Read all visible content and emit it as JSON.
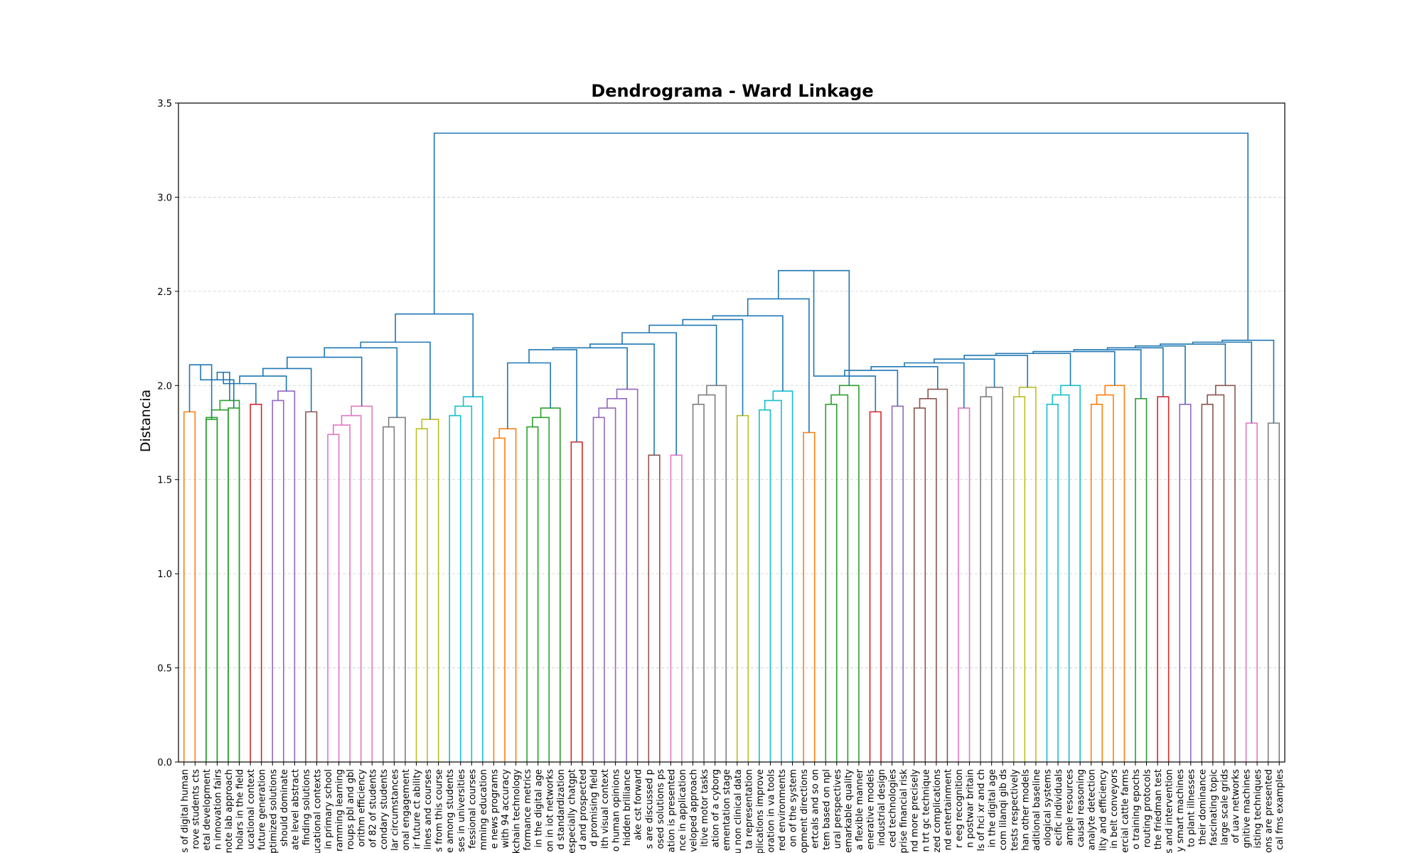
{
  "chart_data": {
    "type": "dendrogram",
    "title": "Dendrograma - Ward Linkage",
    "xlabel": "",
    "ylabel": "Distancia",
    "ylim": [
      0,
      3.5
    ],
    "yticks": [
      0.0,
      0.5,
      1.0,
      1.5,
      2.0,
      2.5,
      3.0,
      3.5
    ],
    "grid": "horizontal dashed",
    "colors": {
      "orange": "#ff7f0e",
      "green": "#2ca02c",
      "red": "#d62728",
      "purple": "#9467bd",
      "brown": "#8c564b",
      "pink": "#e377c2",
      "gray": "#7f7f7f",
      "olive": "#bcbd22",
      "cyan": "#17becf",
      "blue": "#1f77b4"
    },
    "leaves": [
      "s of digital human",
      "rove students cts",
      "etal development",
      "n innovation fairs",
      "note lab approach",
      "holars in the field",
      "ucational context",
      "future generation",
      "optimized solutions",
      "should dominate",
      "ate level abstract",
      "finding solutions",
      "ucational contexts",
      "in primary school",
      "ramming learning",
      "roups pbl and gbl",
      "orithm efficiency",
      "of 82 of students",
      "condary students",
      "lar circumstances",
      "onal engagement",
      "ir future ct ability",
      "lines and courses",
      "s from this course",
      "e among students",
      "ses in universities",
      "fessional courses",
      "mming education",
      "e news programs",
      "with 94 accuracy",
      "kchain technology",
      "formance metrics",
      "in the digital age",
      "on in iot networks",
      "d standardization",
      "especially chatgpt",
      "d and prospected",
      "d promising field",
      "ith visual context",
      "o human opinions",
      "hidden brilliance",
      "ake cst forward",
      "s are discussed p",
      "osed solutions ps",
      "ation is presented",
      "nce in application",
      "veloped approach",
      "itive motor tasks",
      "ation of a cyborg",
      "ementation stage",
      "u non clinical data",
      "ta representation",
      "plications improve",
      "oration in va tools",
      "red environments",
      "on of the system",
      "opment directions",
      "ertcals and so on",
      "tem based on npl",
      "ural perspectives",
      "emarkable quality",
      "a flexible manner",
      "enerative models",
      "industrial design",
      "ced technologies",
      "prise financial risk",
      "nd more precisely",
      "n trt gc technique",
      "zed complications",
      "nd entertainment",
      "r eeg recognition",
      "n postwar britain",
      "ls of hci xr and ch",
      "in the digital age",
      "com lilanqi gib ds",
      "tests respectively",
      "han other models",
      "aditional baseline",
      "ological systems",
      "ecific individuals",
      "ample resources",
      "causal reasoning",
      "analyte detection",
      "lity and efficiency",
      "in belt conveyors",
      "ercial cattle farms",
      "o training epochs",
      "routing protocols",
      "the friedman test",
      "s and intervention",
      "y smart machines",
      "to plant illnesses",
      "their dominance",
      "fascinating topic",
      "large scale grids",
      "of uav networks",
      "gnitive machines",
      "isting techniques",
      "ons are presented",
      "cal fms examples"
    ],
    "merges_note": "clusters listed as [left_leaf_index_start, right_leaf_index_end, height, color]",
    "low_level_clusters": [
      {
        "leaves": [
          0,
          1
        ],
        "height": 1.86,
        "color": "orange"
      },
      {
        "leaves": [
          2,
          3
        ],
        "height": 1.83,
        "color": "green"
      },
      {
        "leaves": [
          4,
          5
        ],
        "height": 1.88,
        "color": "green"
      },
      {
        "leaves": [
          2,
          5
        ],
        "height": 1.92,
        "color": "green"
      },
      {
        "leaves": [
          6,
          7
        ],
        "height": 1.9,
        "color": "red"
      },
      {
        "leaves": [
          8,
          10
        ],
        "height": 1.97,
        "color": "purple"
      },
      {
        "leaves": [
          11,
          12
        ],
        "height": 1.86,
        "color": "brown"
      },
      {
        "leaves": [
          13,
          17
        ],
        "height": 1.89,
        "color": "pink"
      },
      {
        "leaves": [
          18,
          20
        ],
        "height": 1.83,
        "color": "gray"
      },
      {
        "leaves": [
          21,
          23
        ],
        "height": 1.82,
        "color": "olive"
      },
      {
        "leaves": [
          24,
          27
        ],
        "height": 1.94,
        "color": "cyan"
      },
      {
        "leaves": [
          28,
          30
        ],
        "height": 1.77,
        "color": "orange"
      },
      {
        "leaves": [
          31,
          34
        ],
        "height": 1.88,
        "color": "green"
      },
      {
        "leaves": [
          35,
          36
        ],
        "height": 1.7,
        "color": "red"
      },
      {
        "leaves": [
          37,
          41
        ],
        "height": 1.98,
        "color": "purple"
      },
      {
        "leaves": [
          42,
          43
        ],
        "height": 1.63,
        "color": "brown"
      },
      {
        "leaves": [
          44,
          45
        ],
        "height": 1.63,
        "color": "pink"
      },
      {
        "leaves": [
          46,
          49
        ],
        "height": 2.0,
        "color": "gray"
      },
      {
        "leaves": [
          50,
          51
        ],
        "height": 1.84,
        "color": "olive"
      },
      {
        "leaves": [
          52,
          55
        ],
        "height": 1.97,
        "color": "cyan"
      },
      {
        "leaves": [
          56,
          57
        ],
        "height": 1.75,
        "color": "orange"
      },
      {
        "leaves": [
          58,
          61
        ],
        "height": 2.0,
        "color": "green"
      },
      {
        "leaves": [
          62,
          63
        ],
        "height": 1.86,
        "color": "red"
      },
      {
        "leaves": [
          64,
          65
        ],
        "height": 1.89,
        "color": "purple"
      },
      {
        "leaves": [
          66,
          69
        ],
        "height": 1.98,
        "color": "brown"
      },
      {
        "leaves": [
          70,
          71
        ],
        "height": 1.88,
        "color": "pink"
      },
      {
        "leaves": [
          72,
          74
        ],
        "height": 1.99,
        "color": "gray"
      },
      {
        "leaves": [
          75,
          77
        ],
        "height": 1.99,
        "color": "olive"
      },
      {
        "leaves": [
          78,
          81
        ],
        "height": 2.0,
        "color": "cyan"
      },
      {
        "leaves": [
          82,
          85
        ],
        "height": 2.0,
        "color": "orange"
      },
      {
        "leaves": [
          86,
          87
        ],
        "height": 1.93,
        "color": "green"
      },
      {
        "leaves": [
          88,
          89
        ],
        "height": 1.94,
        "color": "red"
      },
      {
        "leaves": [
          90,
          91
        ],
        "height": 1.9,
        "color": "purple"
      },
      {
        "leaves": [
          92,
          95
        ],
        "height": 2.0,
        "color": "brown"
      },
      {
        "leaves": [
          96,
          97
        ],
        "height": 1.8,
        "color": "pink"
      },
      {
        "leaves": [
          98,
          99
        ],
        "height": 1.8,
        "color": "gray"
      }
    ],
    "top_merges": [
      {
        "height": 3.34,
        "description": "root joining left group (leaves 0-27) and right group (leaves 28-99)"
      },
      {
        "height": 2.38,
        "description": "left group"
      },
      {
        "height": 2.61,
        "description": "right group"
      },
      {
        "height": 2.46,
        "description": "right sub-group"
      },
      {
        "height": 2.37,
        "description": "right sub-group"
      },
      {
        "height": 2.35,
        "description": "right sub-group"
      },
      {
        "height": 2.32,
        "description": "right sub-group"
      },
      {
        "height": 2.28,
        "description": "right sub-group"
      },
      {
        "height": 2.22,
        "description": "right sub-group"
      },
      {
        "height": 2.2,
        "description": "right sub-group"
      },
      {
        "height": 2.19,
        "description": "right sub-group"
      }
    ]
  }
}
